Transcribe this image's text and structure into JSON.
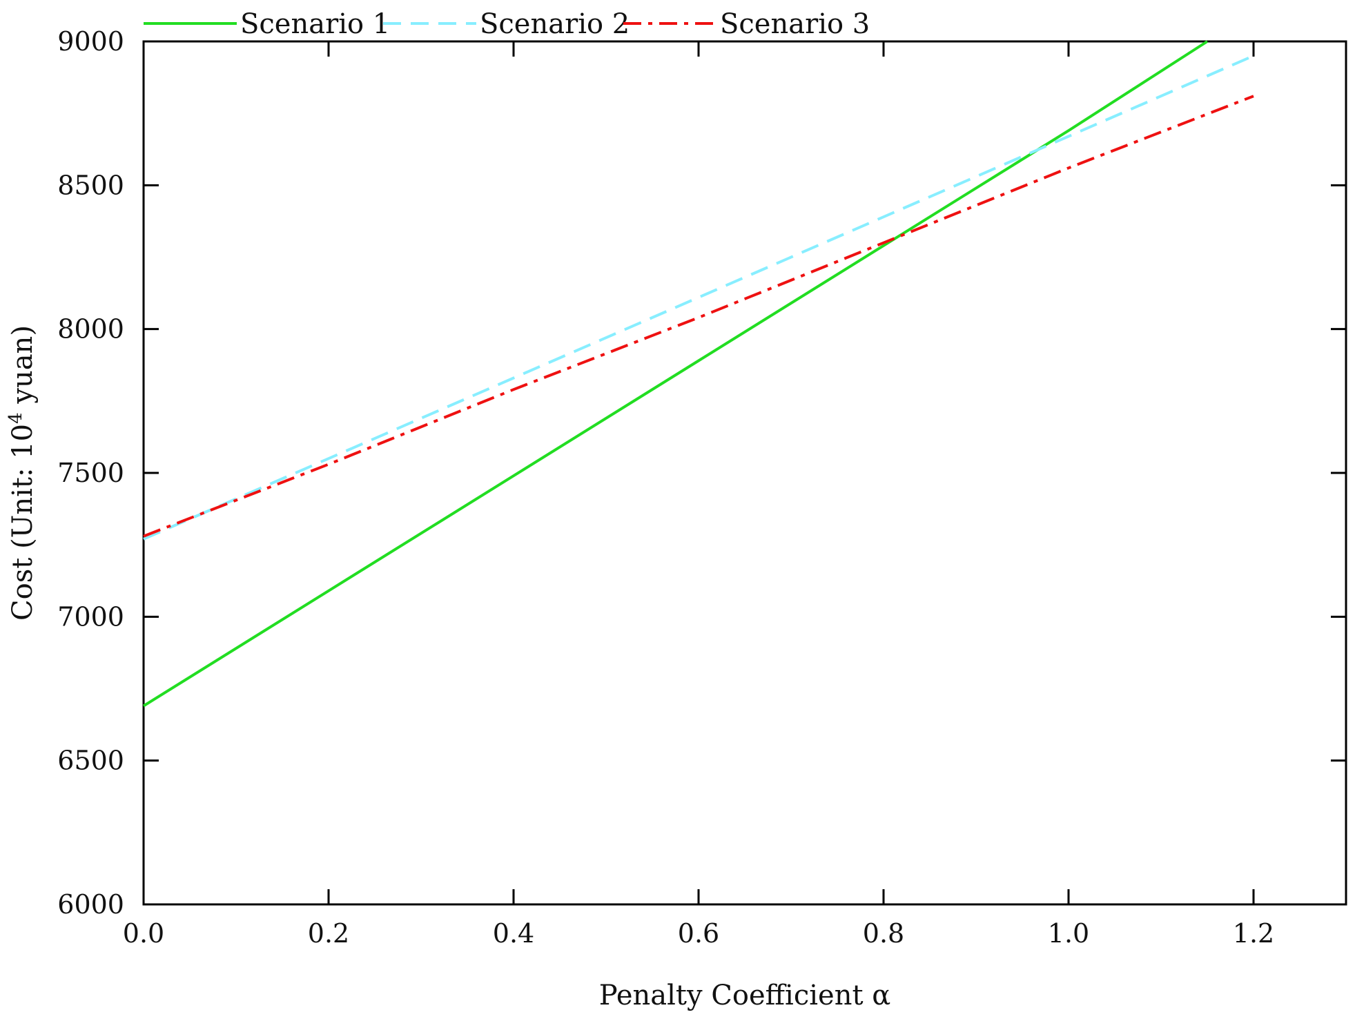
{
  "chart_data": {
    "type": "line",
    "title": "",
    "xlabel": "Penalty Coefficient α",
    "ylabel_main": "Cost (Unit: 10",
    "ylabel_sup": "4",
    "ylabel_tail": " yuan)",
    "xlim": [
      0,
      1.3
    ],
    "ylim": [
      6000,
      9000
    ],
    "xticks": [
      0.0,
      0.2,
      0.4,
      0.6,
      0.8,
      1.0,
      1.2
    ],
    "xtick_labels": [
      "0.0",
      "0.2",
      "0.4",
      "0.6",
      "0.8",
      "1.0",
      "1.2"
    ],
    "yticks": [
      6000,
      6500,
      7000,
      7500,
      8000,
      8500,
      9000
    ],
    "ytick_labels": [
      "6000",
      "6500",
      "7000",
      "7500",
      "8000",
      "8500",
      "9000"
    ],
    "grid": false,
    "legend_position": "top",
    "series": [
      {
        "name": "Scenario 1",
        "color": "#22dd22",
        "style": "solid",
        "x": [
          0.0,
          0.2,
          0.4,
          0.6,
          0.8,
          1.0,
          1.15
        ],
        "y": [
          6690,
          7090,
          7490,
          7890,
          8290,
          8690,
          9000
        ]
      },
      {
        "name": "Scenario 2",
        "color": "#88eeff",
        "style": "dashed",
        "x": [
          0.0,
          0.2,
          0.4,
          0.6,
          0.8,
          1.0,
          1.2
        ],
        "y": [
          7270,
          7550,
          7830,
          8110,
          8390,
          8670,
          8950
        ]
      },
      {
        "name": "Scenario 3",
        "color": "#ee1111",
        "style": "dashdot",
        "x": [
          0.0,
          0.2,
          0.4,
          0.6,
          0.8,
          1.0,
          1.2
        ],
        "y": [
          7280,
          7530,
          7790,
          8040,
          8300,
          8560,
          8810
        ]
      }
    ]
  }
}
